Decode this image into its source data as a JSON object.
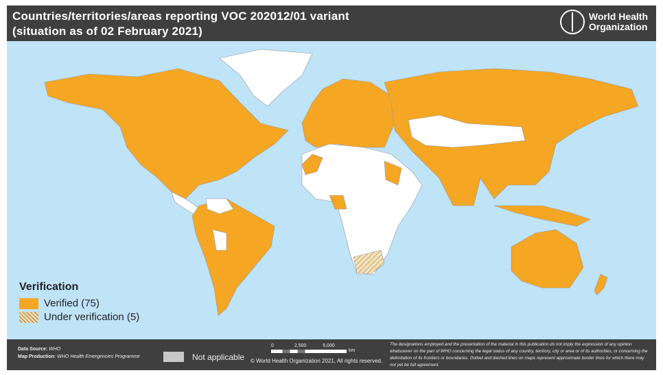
{
  "header": {
    "title_line1": "Countries/territories/areas reporting VOC 202012/01 variant",
    "title_line2": "(situation as of 02 February 2021)",
    "org_name_line1": "World Health",
    "org_name_line2": "Organization",
    "logo_icon": "who-emblem-icon"
  },
  "colors": {
    "verified": "#f5a623",
    "not_reporting": "#ffffff",
    "not_applicable": "#c8c8c8",
    "ocean": "#bfe3f7",
    "bar": "#3f3f3f"
  },
  "legend": {
    "title": "Verification",
    "items": [
      {
        "label": "Verified (75)",
        "count": 75
      },
      {
        "label": "Under verification (5)",
        "count": 5
      }
    ]
  },
  "footer": {
    "data_source_label": "Data Source:",
    "data_source": "WHO",
    "map_production_label": "Map Production:",
    "map_production": "WHO Health Emergencies Programme",
    "not_applicable": "Not applicable",
    "scale_ticks": [
      "0",
      "2,500",
      "5,000"
    ],
    "scale_unit": "km",
    "copyright": "© World Health Organization 2021, All rights reserved.",
    "disclaimer": "The designations employed and the presentation of the material in this publication do not imply the expression of any opinion whatsoever on the part of WHO concerning the legal status of any country, territory, city or area or of its authorities, or concerning the delimitation of its frontiers or boundaries. Dotted and dashed lines on maps represent approximate border lines for which there may not yet be full agreement."
  }
}
